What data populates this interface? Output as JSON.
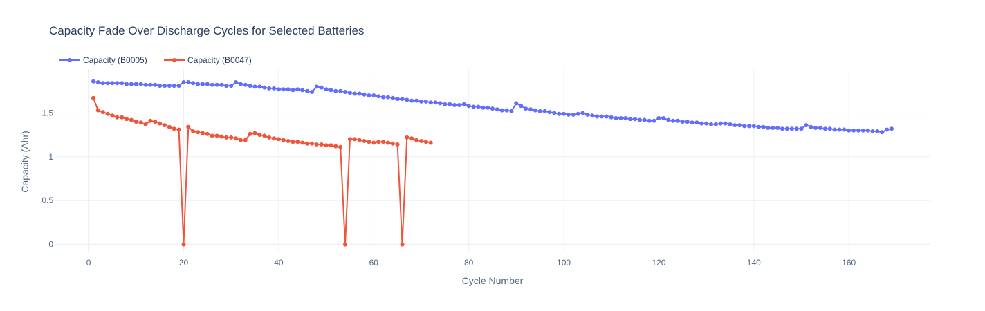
{
  "chart_data": {
    "type": "line",
    "title": "Capacity Fade Over Discharge Cycles for Selected Batteries",
    "xlabel": "Cycle Number",
    "ylabel": "Capacity (Ahr)",
    "xlim": [
      -7,
      177
    ],
    "ylim": [
      -0.09,
      2.0
    ],
    "xticks": [
      0,
      20,
      40,
      60,
      80,
      100,
      120,
      140,
      160
    ],
    "yticks": [
      0,
      0.5,
      1,
      1.5
    ],
    "ytick_labels": [
      "0",
      "0.5",
      "1",
      "1.5"
    ],
    "grid": true,
    "legend_position": "top-left",
    "series": [
      {
        "name": "Capacity (B0005)",
        "color": "#636efa",
        "x_start": 1,
        "values": [
          1.86,
          1.85,
          1.84,
          1.84,
          1.84,
          1.84,
          1.84,
          1.83,
          1.83,
          1.83,
          1.83,
          1.82,
          1.82,
          1.82,
          1.81,
          1.81,
          1.81,
          1.81,
          1.81,
          1.85,
          1.85,
          1.84,
          1.83,
          1.83,
          1.83,
          1.82,
          1.82,
          1.82,
          1.81,
          1.81,
          1.85,
          1.83,
          1.82,
          1.81,
          1.8,
          1.8,
          1.79,
          1.78,
          1.78,
          1.77,
          1.77,
          1.77,
          1.76,
          1.77,
          1.76,
          1.75,
          1.74,
          1.8,
          1.79,
          1.77,
          1.76,
          1.75,
          1.75,
          1.74,
          1.73,
          1.72,
          1.72,
          1.71,
          1.7,
          1.7,
          1.69,
          1.68,
          1.68,
          1.67,
          1.66,
          1.66,
          1.65,
          1.64,
          1.64,
          1.63,
          1.63,
          1.62,
          1.62,
          1.61,
          1.6,
          1.6,
          1.59,
          1.59,
          1.6,
          1.58,
          1.57,
          1.57,
          1.56,
          1.56,
          1.55,
          1.54,
          1.53,
          1.53,
          1.52,
          1.61,
          1.58,
          1.55,
          1.54,
          1.53,
          1.52,
          1.52,
          1.51,
          1.5,
          1.49,
          1.49,
          1.48,
          1.48,
          1.49,
          1.5,
          1.48,
          1.47,
          1.46,
          1.46,
          1.46,
          1.45,
          1.44,
          1.44,
          1.44,
          1.43,
          1.43,
          1.42,
          1.42,
          1.41,
          1.41,
          1.44,
          1.44,
          1.42,
          1.41,
          1.41,
          1.4,
          1.4,
          1.39,
          1.39,
          1.38,
          1.38,
          1.37,
          1.37,
          1.38,
          1.38,
          1.37,
          1.36,
          1.36,
          1.35,
          1.35,
          1.35,
          1.34,
          1.34,
          1.33,
          1.33,
          1.33,
          1.32,
          1.32,
          1.32,
          1.32,
          1.32,
          1.36,
          1.34,
          1.33,
          1.33,
          1.32,
          1.32,
          1.31,
          1.31,
          1.31,
          1.3,
          1.3,
          1.3,
          1.3,
          1.3,
          1.29,
          1.29,
          1.28,
          1.31,
          1.32
        ]
      },
      {
        "name": "Capacity (B0047)",
        "color": "#ef553b",
        "x_start": 1,
        "values": [
          1.67,
          1.53,
          1.51,
          1.49,
          1.47,
          1.45,
          1.45,
          1.43,
          1.42,
          1.4,
          1.39,
          1.37,
          1.41,
          1.4,
          1.38,
          1.36,
          1.34,
          1.32,
          1.31,
          0.0,
          1.34,
          1.29,
          1.28,
          1.27,
          1.26,
          1.24,
          1.24,
          1.23,
          1.22,
          1.22,
          1.21,
          1.19,
          1.19,
          1.26,
          1.27,
          1.25,
          1.24,
          1.22,
          1.21,
          1.2,
          1.19,
          1.18,
          1.17,
          1.17,
          1.16,
          1.15,
          1.15,
          1.14,
          1.14,
          1.13,
          1.13,
          1.12,
          1.11,
          0.0,
          1.2,
          1.2,
          1.19,
          1.18,
          1.17,
          1.16,
          1.17,
          1.17,
          1.16,
          1.15,
          1.14,
          0.0,
          1.22,
          1.21,
          1.19,
          1.18,
          1.17,
          1.16
        ]
      }
    ]
  }
}
